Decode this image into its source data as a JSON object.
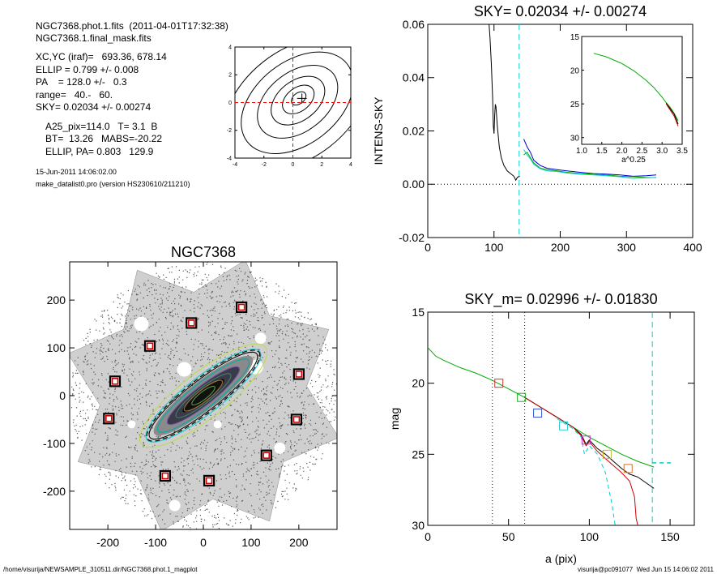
{
  "header": {
    "line1": "NGC7368.phot.1.fits  (2011-04-01T17:32:38)",
    "line2": "NGC7368.1.final_mask.fits",
    "params": [
      "XC,YC (iraf)=   693.36, 678.14",
      "ELLIP = 0.799 +/- 0.008",
      "PA    = 128.0 +/-   0.3",
      "range=   40.-   60.",
      "SKY= 0.02034 +/- 0.00274"
    ],
    "params2": [
      "A25_pix=114.0   T= 3.1  B",
      "BT=  13.26   MABS=-20.22",
      "ELLIP, PA= 0.803   129.9"
    ],
    "date": "15-Jun-2011 14:06:02.00",
    "program": "make_datalist0.pro (version HS230610/211210)"
  },
  "footer": {
    "path": "/home/visurija/NEWSAMPLE_310511.dir/NGC7368.phot.1_magplot",
    "user": "visurija@pc091077  Wed Jun 15 14:06:02 2011"
  },
  "chart_data": [
    {
      "id": "contour",
      "type": "contour",
      "xlim": [
        -4,
        4
      ],
      "ylim": [
        -4,
        4
      ],
      "xticks": [
        "-4",
        "-2",
        "0",
        "2",
        "4"
      ],
      "yticks": [
        "-4",
        "-2",
        "0",
        "2",
        "4"
      ],
      "center": [
        0.4,
        0.3
      ],
      "levels": [
        0.6,
        1.3,
        2.2,
        3.3,
        4.6,
        6.0
      ],
      "colors": {
        "contour": "#000000",
        "crosshair": "#ff0000"
      }
    },
    {
      "id": "sky",
      "type": "line",
      "title": "SKY= 0.02034 +/- 0.00274",
      "ylabel": "INTENS-SKY",
      "xlim": [
        0,
        400
      ],
      "ylim": [
        -0.02,
        0.06
      ],
      "xticks": [
        "0",
        "100",
        "200",
        "300",
        "400"
      ],
      "yticks": [
        "-0.02",
        "0.00",
        "0.02",
        "0.04",
        "0.06"
      ],
      "sky_radius": 138,
      "series": [
        {
          "color": "#000000",
          "x": [
            92,
            94,
            96,
            98,
            99,
            100,
            101,
            102,
            103,
            105,
            108,
            111,
            115,
            120,
            125,
            130,
            133,
            135,
            137,
            139
          ],
          "y": [
            0.062,
            0.055,
            0.045,
            0.032,
            0.022,
            0.019,
            0.026,
            0.03,
            0.029,
            0.022,
            0.014,
            0.01,
            0.007,
            0.005,
            0.004,
            0.003,
            0.0015,
            0.0025,
            0.0028,
            0.003
          ]
        },
        {
          "color": "#0000cc",
          "x": [
            145,
            150,
            155,
            160,
            170,
            180,
            195,
            210,
            230,
            250,
            270,
            290,
            310,
            330,
            345
          ],
          "y": [
            0.017,
            0.014,
            0.012,
            0.009,
            0.007,
            0.006,
            0.0055,
            0.005,
            0.0045,
            0.004,
            0.0038,
            0.0035,
            0.003,
            0.0032,
            0.0035
          ]
        },
        {
          "color": "#00aa00",
          "x": [
            145,
            150,
            155,
            160,
            170,
            180,
            195,
            210,
            230,
            250,
            270,
            290,
            310,
            330,
            345
          ],
          "y": [
            0.011,
            0.012,
            0.01,
            0.008,
            0.006,
            0.0055,
            0.005,
            0.0045,
            0.004,
            0.0038,
            0.0035,
            0.003,
            0.0028,
            0.0025,
            0.0025
          ]
        },
        {
          "color": "#00cccc",
          "x": [
            145,
            150,
            155,
            160,
            170,
            180,
            195,
            210,
            230,
            250,
            270,
            290,
            310,
            330,
            345
          ],
          "y": [
            0.013,
            0.011,
            0.0095,
            0.0075,
            0.0058,
            0.005,
            0.0048,
            0.0042,
            0.0038,
            0.0035,
            0.0032,
            0.0028,
            0.0022,
            0.0024,
            0.0026
          ]
        }
      ],
      "inset": {
        "xlabel": "a^0.25",
        "xlim": [
          1.0,
          3.5
        ],
        "ylim": [
          15,
          31
        ],
        "xticks": [
          "1.0",
          "1.5",
          "2.0",
          "2.5",
          "3.0",
          "3.5"
        ],
        "yticks": [
          "15",
          "20",
          "25",
          "30"
        ],
        "series": [
          {
            "color": "#00aa00",
            "x": [
              1.3,
              1.6,
              2.0,
              2.3,
              2.6,
              2.8,
              3.0,
              3.1,
              3.2,
              3.3,
              3.4
            ],
            "y": [
              17.5,
              18.0,
              19.0,
              20.1,
              21.5,
              22.6,
              24.0,
              24.8,
              25.5,
              26.4,
              27.5
            ]
          },
          {
            "color": "#000000",
            "x": [
              3.1,
              3.2,
              3.3,
              3.4
            ],
            "y": [
              24.9,
              25.7,
              26.5,
              28.0
            ]
          },
          {
            "color": "#cc0000",
            "x": [
              3.1,
              3.2,
              3.3,
              3.4
            ],
            "y": [
              25.0,
              25.9,
              26.8,
              28.3
            ]
          }
        ]
      }
    },
    {
      "id": "image",
      "type": "scatter",
      "title": "NGC7368",
      "xlim": [
        -280,
        280
      ],
      "ylim": [
        -280,
        280
      ],
      "xticks": [
        "-200",
        "-100",
        "0",
        "100",
        "200"
      ],
      "yticks": [
        "-200",
        "-100",
        "0",
        "100",
        "200"
      ],
      "pa_deg": 38,
      "markers": [
        {
          "x": 80,
          "y": 185
        },
        {
          "x": -25,
          "y": 152
        },
        {
          "x": -112,
          "y": 104
        },
        {
          "x": -185,
          "y": 30
        },
        {
          "x": 200,
          "y": 45
        },
        {
          "x": -198,
          "y": -48
        },
        {
          "x": 195,
          "y": -50
        },
        {
          "x": 132,
          "y": -125
        },
        {
          "x": -80,
          "y": -168
        },
        {
          "x": 12,
          "y": -178
        }
      ],
      "ellipses": [
        {
          "a": 165,
          "b": 48,
          "color": "#bbdd44"
        },
        {
          "a": 150,
          "b": 38,
          "color": "#00cccc"
        },
        {
          "a": 142,
          "b": 32,
          "color": "#000000"
        },
        {
          "a": 120,
          "b": 26,
          "color": "#00aaaa"
        },
        {
          "a": 95,
          "b": 20,
          "color": "#7755aa"
        },
        {
          "a": 72,
          "b": 16,
          "color": "#448866"
        },
        {
          "a": 50,
          "b": 12,
          "color": "#aa7733"
        },
        {
          "a": 30,
          "b": 8,
          "color": "#55aa44"
        }
      ]
    },
    {
      "id": "mag",
      "type": "line",
      "title": "SKY_m=  0.02996 +/- 0.01830",
      "xlabel": "a (pix)",
      "ylabel": "mag",
      "xlim": [
        0,
        165
      ],
      "ylim": [
        30,
        15
      ],
      "xticks": [
        "0",
        "50",
        "100",
        "150"
      ],
      "yticks": [
        "15",
        "20",
        "25",
        "30"
      ],
      "vlines": [
        40,
        60
      ],
      "sky_vline": 139,
      "sky_hline": {
        "x": [
          139,
          152
        ],
        "y": 25.6
      },
      "series": [
        {
          "color": "#00aa00",
          "x": [
            0,
            5,
            10,
            20,
            30,
            40,
            50,
            60,
            70,
            80,
            90,
            100,
            110,
            120,
            130,
            135,
            140
          ],
          "y": [
            17.5,
            18.1,
            18.4,
            18.9,
            19.3,
            19.8,
            20.4,
            21.0,
            21.7,
            22.4,
            23.1,
            23.8,
            24.4,
            25.0,
            25.5,
            25.7,
            25.9
          ]
        },
        {
          "color": "#000000",
          "x": [
            60,
            70,
            80,
            90,
            95,
            98,
            100,
            105,
            110,
            115,
            120,
            125,
            130,
            135,
            140
          ],
          "y": [
            21.0,
            21.7,
            22.4,
            23.1,
            23.6,
            24.3,
            24.0,
            24.6,
            25.0,
            25.5,
            26.0,
            26.4,
            26.6,
            27.0,
            27.4
          ]
        },
        {
          "color": "#cc0000",
          "x": [
            60,
            70,
            80,
            90,
            95,
            98,
            100,
            105,
            110,
            115,
            120,
            125,
            128,
            129,
            130
          ],
          "y": [
            21.0,
            21.7,
            22.4,
            23.1,
            23.7,
            24.4,
            24.1,
            24.8,
            25.3,
            25.8,
            26.3,
            26.9,
            28.0,
            29.5,
            30.0
          ]
        },
        {
          "color": "#00cccc",
          "x": [
            80,
            90,
            95,
            97,
            100,
            105,
            110,
            114,
            116
          ],
          "y": [
            22.5,
            23.2,
            23.8,
            25.0,
            24.4,
            25.0,
            26.3,
            28.5,
            30.0
          ]
        }
      ],
      "markers": [
        {
          "x": 44,
          "y": 20.0,
          "color": "#cc3333"
        },
        {
          "x": 58,
          "y": 21.0,
          "color": "#22aa22"
        },
        {
          "x": 68,
          "y": 22.1,
          "color": "#3355cc"
        },
        {
          "x": 84,
          "y": 23.0,
          "color": "#33cccc"
        },
        {
          "x": 98,
          "y": 24.0,
          "color": "#cc33cc"
        },
        {
          "x": 111,
          "y": 25.0,
          "color": "#bbbb22"
        },
        {
          "x": 124,
          "y": 26.0,
          "color": "#cc7733"
        }
      ]
    }
  ]
}
